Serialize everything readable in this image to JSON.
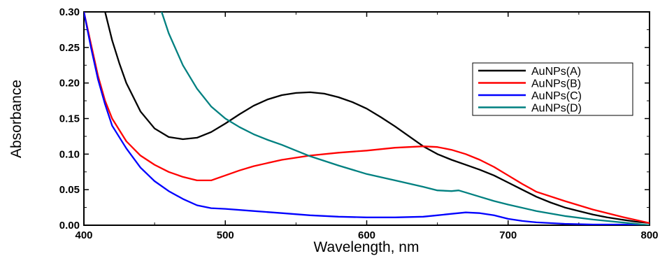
{
  "chart_data": {
    "type": "line",
    "title": "",
    "xlabel": "Wavelength, nm",
    "ylabel": "Absorbance",
    "xlim": [
      400,
      800
    ],
    "ylim": [
      0.0,
      0.3
    ],
    "x_ticks": [
      "400",
      "500",
      "600",
      "700",
      "800"
    ],
    "y_ticks": [
      "0.00",
      "0.05",
      "0.10",
      "0.15",
      "0.20",
      "0.25",
      "0.30"
    ],
    "grid": false,
    "legend_position": "top-right",
    "series": [
      {
        "name": "AuNPs(A)",
        "color": "#000000",
        "x": [
          415,
          420,
          425,
          430,
          440,
          450,
          460,
          470,
          480,
          490,
          500,
          510,
          520,
          530,
          540,
          550,
          560,
          570,
          580,
          590,
          600,
          610,
          620,
          630,
          640,
          650,
          660,
          670,
          680,
          690,
          700,
          710,
          720,
          730,
          740,
          750,
          760,
          770,
          780,
          790,
          800
        ],
        "y": [
          0.3,
          0.26,
          0.228,
          0.2,
          0.16,
          0.136,
          0.124,
          0.121,
          0.123,
          0.131,
          0.143,
          0.156,
          0.168,
          0.177,
          0.183,
          0.186,
          0.187,
          0.185,
          0.18,
          0.173,
          0.164,
          0.152,
          0.139,
          0.125,
          0.111,
          0.1,
          0.092,
          0.085,
          0.078,
          0.07,
          0.06,
          0.05,
          0.04,
          0.032,
          0.025,
          0.02,
          0.015,
          0.011,
          0.008,
          0.005,
          0.003
        ]
      },
      {
        "name": "AuNPs(B)",
        "color": "#ff0000",
        "x": [
          400,
          405,
          410,
          415,
          420,
          430,
          440,
          450,
          460,
          470,
          480,
          490,
          500,
          510,
          520,
          540,
          560,
          580,
          600,
          620,
          640,
          650,
          660,
          670,
          680,
          690,
          700,
          710,
          720,
          740,
          760,
          780,
          800
        ],
        "y": [
          0.3,
          0.255,
          0.21,
          0.175,
          0.15,
          0.118,
          0.098,
          0.085,
          0.075,
          0.068,
          0.063,
          0.063,
          0.07,
          0.077,
          0.083,
          0.092,
          0.098,
          0.102,
          0.105,
          0.109,
          0.111,
          0.11,
          0.106,
          0.1,
          0.092,
          0.082,
          0.07,
          0.058,
          0.047,
          0.034,
          0.022,
          0.012,
          0.003
        ]
      },
      {
        "name": "AuNPs(C)",
        "color": "#0000ff",
        "x": [
          400,
          405,
          410,
          415,
          420,
          430,
          440,
          450,
          460,
          470,
          480,
          490,
          500,
          520,
          540,
          560,
          580,
          600,
          620,
          640,
          650,
          660,
          670,
          680,
          690,
          700,
          710,
          720,
          740,
          760,
          780,
          800
        ],
        "y": [
          0.3,
          0.25,
          0.205,
          0.17,
          0.14,
          0.108,
          0.081,
          0.062,
          0.048,
          0.037,
          0.028,
          0.024,
          0.023,
          0.02,
          0.017,
          0.014,
          0.012,
          0.011,
          0.011,
          0.012,
          0.014,
          0.016,
          0.018,
          0.017,
          0.014,
          0.009,
          0.006,
          0.004,
          0.002,
          0.001,
          0.001,
          0.0
        ]
      },
      {
        "name": "AuNPs(D)",
        "color": "#008080",
        "x": [
          455,
          460,
          470,
          480,
          490,
          500,
          510,
          520,
          530,
          540,
          550,
          560,
          580,
          600,
          620,
          640,
          650,
          660,
          665,
          670,
          680,
          690,
          700,
          720,
          740,
          760,
          780,
          800
        ],
        "y": [
          0.3,
          0.27,
          0.225,
          0.192,
          0.167,
          0.15,
          0.138,
          0.128,
          0.12,
          0.113,
          0.105,
          0.097,
          0.084,
          0.072,
          0.063,
          0.054,
          0.049,
          0.048,
          0.049,
          0.046,
          0.04,
          0.034,
          0.029,
          0.02,
          0.013,
          0.008,
          0.004,
          0.0
        ]
      }
    ]
  }
}
